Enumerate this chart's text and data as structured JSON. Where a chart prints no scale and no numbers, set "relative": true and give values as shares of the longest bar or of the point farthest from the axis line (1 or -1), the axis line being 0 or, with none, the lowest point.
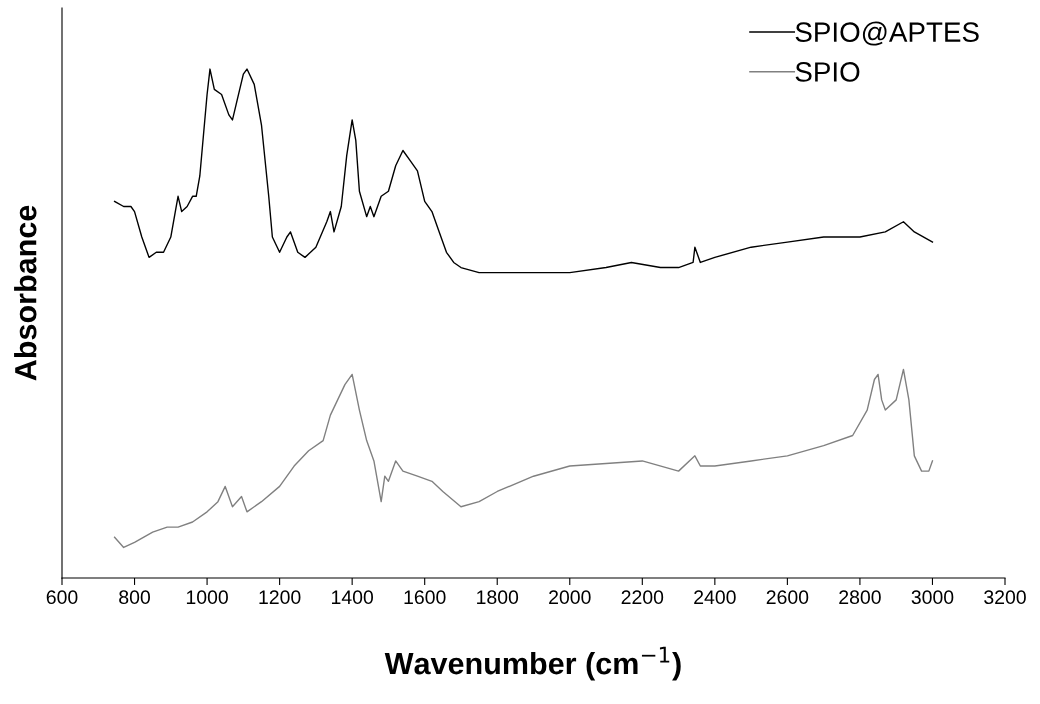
{
  "chart_data": {
    "type": "line",
    "relative": true,
    "xlabel": "Wavenumber (cm$^{−1}$)",
    "ylabel": "Absorbance",
    "xlim": [
      600,
      3200
    ],
    "xticks": [
      600,
      800,
      1000,
      1200,
      1400,
      1600,
      1800,
      2000,
      2200,
      2400,
      2600,
      2800,
      3000,
      3200
    ],
    "grid": false,
    "legend": "top right",
    "marker": "none",
    "line_style": "solid",
    "series": [
      {
        "name": "SPIO@APTES",
        "color": "#000000",
        "x": [
          745,
          770,
          790,
          800,
          820,
          840,
          860,
          880,
          900,
          915,
          920,
          930,
          945,
          960,
          970,
          980,
          1000,
          1008,
          1020,
          1040,
          1060,
          1070,
          1080,
          1100,
          1110,
          1130,
          1150,
          1170,
          1180,
          1200,
          1220,
          1230,
          1250,
          1270,
          1300,
          1330,
          1340,
          1350,
          1370,
          1385,
          1400,
          1410,
          1420,
          1440,
          1450,
          1460,
          1480,
          1500,
          1520,
          1540,
          1560,
          1580,
          1600,
          1620,
          1640,
          1660,
          1680,
          1700,
          1750,
          1800,
          1900,
          2000,
          2100,
          2170,
          2250,
          2300,
          2340,
          2345,
          2360,
          2400,
          2500,
          2600,
          2700,
          2800,
          2870,
          2920,
          2950,
          3000
        ],
        "values": [
          0.74,
          0.73,
          0.73,
          0.72,
          0.67,
          0.63,
          0.64,
          0.64,
          0.67,
          0.73,
          0.75,
          0.72,
          0.73,
          0.75,
          0.75,
          0.79,
          0.95,
          1.0,
          0.96,
          0.95,
          0.91,
          0.9,
          0.93,
          0.99,
          1.0,
          0.97,
          0.89,
          0.75,
          0.67,
          0.64,
          0.67,
          0.68,
          0.64,
          0.63,
          0.65,
          0.7,
          0.72,
          0.68,
          0.73,
          0.83,
          0.9,
          0.86,
          0.76,
          0.71,
          0.73,
          0.71,
          0.75,
          0.76,
          0.81,
          0.84,
          0.82,
          0.8,
          0.74,
          0.72,
          0.68,
          0.64,
          0.62,
          0.61,
          0.6,
          0.6,
          0.6,
          0.6,
          0.61,
          0.62,
          0.61,
          0.61,
          0.62,
          0.65,
          0.62,
          0.63,
          0.65,
          0.66,
          0.67,
          0.67,
          0.68,
          0.7,
          0.68,
          0.66
        ]
      },
      {
        "name": "SPIO",
        "color": "#808080",
        "x": [
          745,
          770,
          800,
          850,
          890,
          920,
          960,
          1000,
          1030,
          1050,
          1070,
          1095,
          1110,
          1150,
          1200,
          1240,
          1280,
          1320,
          1340,
          1360,
          1380,
          1400,
          1420,
          1440,
          1460,
          1480,
          1490,
          1500,
          1520,
          1540,
          1580,
          1620,
          1650,
          1700,
          1750,
          1800,
          1900,
          2000,
          2200,
          2300,
          2345,
          2360,
          2400,
          2500,
          2600,
          2700,
          2780,
          2820,
          2840,
          2850,
          2860,
          2870,
          2900,
          2920,
          2935,
          2950,
          2970,
          2990,
          3000
        ],
        "values": [
          0.08,
          0.06,
          0.07,
          0.09,
          0.1,
          0.1,
          0.11,
          0.13,
          0.15,
          0.18,
          0.14,
          0.16,
          0.13,
          0.15,
          0.18,
          0.22,
          0.25,
          0.27,
          0.32,
          0.35,
          0.38,
          0.4,
          0.33,
          0.27,
          0.23,
          0.15,
          0.2,
          0.19,
          0.23,
          0.21,
          0.2,
          0.19,
          0.17,
          0.14,
          0.15,
          0.17,
          0.2,
          0.22,
          0.23,
          0.21,
          0.24,
          0.22,
          0.22,
          0.23,
          0.24,
          0.26,
          0.28,
          0.33,
          0.39,
          0.4,
          0.35,
          0.33,
          0.35,
          0.41,
          0.35,
          0.24,
          0.21,
          0.21,
          0.23
        ]
      }
    ]
  }
}
